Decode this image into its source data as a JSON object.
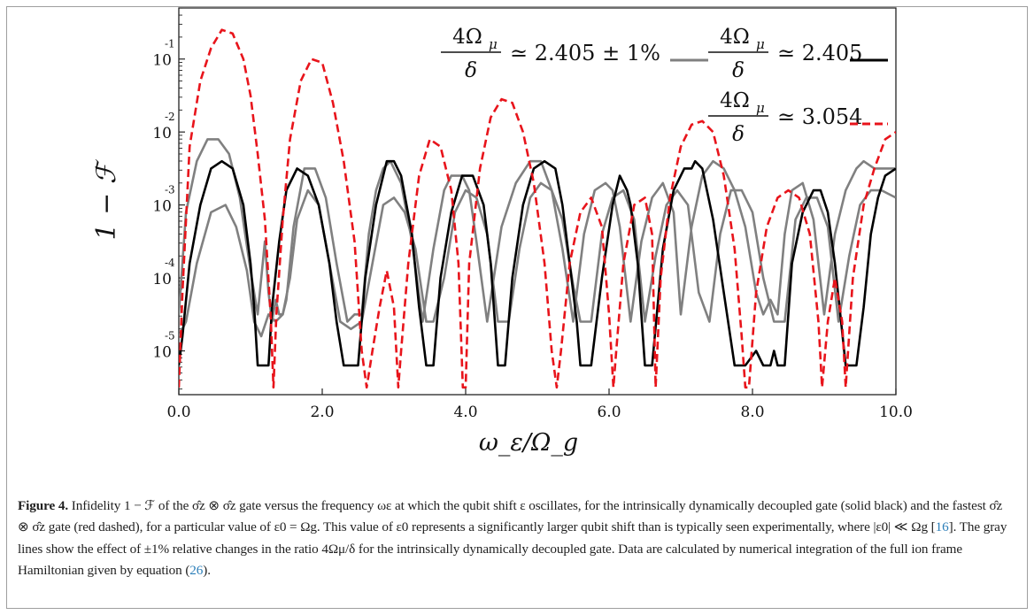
{
  "chart_data": {
    "type": "line",
    "xlabel": "ω_ε/Ω_g",
    "ylabel": "1 − ℱ",
    "xlim": [
      0,
      10
    ],
    "ylim": [
      -5.6,
      -0.3
    ],
    "y_scale": "log",
    "x_ticks": [
      "0.0",
      "2.0",
      "4.0",
      "6.0",
      "8.0",
      "10.0"
    ],
    "y_ticks": [
      {
        "base": "10",
        "exp": "-1",
        "log": -1
      },
      {
        "base": "10",
        "exp": "-2",
        "log": -2
      },
      {
        "base": "10",
        "exp": "-3",
        "log": -3
      },
      {
        "base": "10",
        "exp": "-4",
        "log": -4
      },
      {
        "base": "10",
        "exp": "-5",
        "log": -5
      }
    ],
    "legend_placement": "top-right",
    "series": [
      {
        "key": "gray_upper",
        "color": "#808080",
        "style": "solid",
        "x": [
          0.0,
          0.1,
          0.25,
          0.4,
          0.55,
          0.7,
          0.85,
          1.0,
          1.1,
          1.2,
          1.25,
          1.3,
          1.35,
          1.4,
          1.45,
          1.5,
          1.6,
          1.75,
          1.9,
          2.05,
          2.2,
          2.35,
          2.45,
          2.55,
          2.65,
          2.75,
          2.85,
          2.95,
          3.1,
          3.25,
          3.4,
          3.55,
          3.7,
          3.8,
          3.9,
          3.95,
          4.05,
          4.15,
          4.3,
          4.5,
          4.7,
          4.9,
          5.05,
          5.2,
          5.35,
          5.5,
          5.65,
          5.8,
          5.95,
          6.05,
          6.15,
          6.3,
          6.45,
          6.6,
          6.75,
          6.9,
          7.0,
          7.15,
          7.3,
          7.45,
          7.6,
          7.75,
          7.9,
          8.05,
          8.15,
          8.25,
          8.35,
          8.45,
          8.55,
          8.7,
          8.85,
          9.0,
          9.15,
          9.3,
          9.45,
          9.55,
          9.7,
          9.85,
          10.0
        ],
        "y": [
          -4.5,
          -3.1,
          -2.4,
          -2.1,
          -2.1,
          -2.3,
          -2.9,
          -3.9,
          -4.5,
          -3.5,
          -4.2,
          -4.6,
          -4.3,
          -4.5,
          -4.5,
          -4.3,
          -3.3,
          -2.5,
          -2.5,
          -2.9,
          -3.8,
          -4.6,
          -4.5,
          -4.5,
          -3.4,
          -2.8,
          -2.5,
          -2.4,
          -2.7,
          -3.5,
          -4.6,
          -3.6,
          -2.8,
          -2.6,
          -2.6,
          -2.6,
          -2.8,
          -3.5,
          -4.6,
          -3.3,
          -2.7,
          -2.4,
          -2.4,
          -2.8,
          -3.6,
          -4.6,
          -3.4,
          -2.8,
          -2.7,
          -2.8,
          -3.3,
          -4.6,
          -3.5,
          -2.9,
          -2.7,
          -3.1,
          -4.5,
          -3.3,
          -2.6,
          -2.4,
          -2.5,
          -2.8,
          -3.3,
          -4.2,
          -4.5,
          -4.3,
          -4.5,
          -3.4,
          -2.8,
          -2.7,
          -3.2,
          -4.5,
          -3.4,
          -2.8,
          -2.5,
          -2.4,
          -2.5,
          -2.5,
          -2.5
        ]
      },
      {
        "key": "gray_lower",
        "color": "#808080",
        "style": "solid",
        "x": [
          0.0,
          0.1,
          0.25,
          0.45,
          0.65,
          0.8,
          0.95,
          1.05,
          1.15,
          1.25,
          1.35,
          1.45,
          1.55,
          1.65,
          1.8,
          1.95,
          2.1,
          2.25,
          2.4,
          2.55,
          2.7,
          2.85,
          3.0,
          3.15,
          3.3,
          3.45,
          3.55,
          3.7,
          3.85,
          4.0,
          4.15,
          4.3,
          4.45,
          4.6,
          4.75,
          4.9,
          5.05,
          5.2,
          5.35,
          5.5,
          5.6,
          5.75,
          5.9,
          6.05,
          6.2,
          6.35,
          6.5,
          6.65,
          6.8,
          6.95,
          7.1,
          7.25,
          7.4,
          7.55,
          7.7,
          7.85,
          8.0,
          8.15,
          8.3,
          8.45,
          8.6,
          8.75,
          8.9,
          9.05,
          9.2,
          9.35,
          9.5,
          9.65,
          9.8,
          10.0
        ],
        "y": [
          -4.8,
          -4.6,
          -3.8,
          -3.1,
          -3.0,
          -3.3,
          -3.9,
          -4.6,
          -4.8,
          -4.5,
          -4.6,
          -4.5,
          -4.0,
          -3.2,
          -2.8,
          -3.0,
          -3.8,
          -4.6,
          -4.7,
          -4.6,
          -3.8,
          -3.0,
          -2.9,
          -3.1,
          -3.6,
          -4.6,
          -4.6,
          -4.0,
          -3.1,
          -2.8,
          -2.9,
          -3.4,
          -4.6,
          -4.6,
          -3.6,
          -2.9,
          -2.7,
          -2.8,
          -3.2,
          -4.1,
          -4.6,
          -4.6,
          -3.4,
          -2.9,
          -2.8,
          -3.2,
          -4.6,
          -3.7,
          -3.0,
          -2.8,
          -3.0,
          -4.2,
          -4.6,
          -3.4,
          -2.8,
          -2.8,
          -3.1,
          -4.0,
          -4.6,
          -4.6,
          -3.2,
          -2.9,
          -2.9,
          -3.3,
          -4.6,
          -3.7,
          -3.0,
          -2.8,
          -2.8,
          -2.9
        ]
      },
      {
        "key": "black",
        "color": "#000000",
        "style": "solid",
        "x": [
          0.0,
          0.05,
          0.15,
          0.3,
          0.45,
          0.6,
          0.75,
          0.9,
          1.0,
          1.05,
          1.1,
          1.15,
          1.25,
          1.3,
          1.4,
          1.5,
          1.65,
          1.8,
          1.95,
          2.1,
          2.2,
          2.3,
          2.4,
          2.5,
          2.6,
          2.75,
          2.9,
          3.0,
          3.1,
          3.25,
          3.35,
          3.45,
          3.55,
          3.65,
          3.8,
          3.95,
          4.1,
          4.25,
          4.35,
          4.45,
          4.55,
          4.65,
          4.8,
          4.95,
          5.1,
          5.25,
          5.35,
          5.45,
          5.55,
          5.6,
          5.75,
          5.9,
          6.05,
          6.15,
          6.25,
          6.3,
          6.4,
          6.5,
          6.6,
          6.75,
          6.9,
          7.05,
          7.15,
          7.2,
          7.3,
          7.45,
          7.6,
          7.75,
          7.9,
          8.05,
          8.15,
          8.25,
          8.3,
          8.35,
          8.4,
          8.45,
          8.55,
          8.7,
          8.85,
          8.95,
          9.05,
          9.15,
          9.3,
          9.45,
          9.55,
          9.65,
          9.75,
          9.85,
          10.0
        ],
        "y": [
          -5.2,
          -4.8,
          -3.8,
          -3.0,
          -2.5,
          -2.4,
          -2.5,
          -3.0,
          -3.8,
          -4.4,
          -5.2,
          -5.2,
          -5.2,
          -4.4,
          -3.5,
          -2.8,
          -2.5,
          -2.6,
          -3.0,
          -3.8,
          -4.6,
          -5.2,
          -5.2,
          -5.2,
          -4.0,
          -3.0,
          -2.4,
          -2.4,
          -2.6,
          -3.4,
          -4.4,
          -5.2,
          -5.2,
          -4.0,
          -3.1,
          -2.6,
          -2.6,
          -3.0,
          -3.8,
          -5.2,
          -5.2,
          -4.0,
          -3.0,
          -2.5,
          -2.4,
          -2.5,
          -3.0,
          -3.8,
          -4.6,
          -5.2,
          -5.2,
          -4.0,
          -3.0,
          -2.6,
          -2.8,
          -3.0,
          -3.8,
          -5.2,
          -5.2,
          -3.6,
          -2.8,
          -2.5,
          -2.5,
          -2.4,
          -2.5,
          -3.2,
          -4.2,
          -5.2,
          -5.2,
          -5.0,
          -5.2,
          -5.2,
          -5.0,
          -5.2,
          -5.2,
          -5.2,
          -3.8,
          -3.1,
          -2.8,
          -2.8,
          -3.1,
          -3.8,
          -5.2,
          -5.2,
          -4.4,
          -3.4,
          -2.9,
          -2.6,
          -2.5
        ]
      },
      {
        "key": "red",
        "color": "#e8141b",
        "style": "dashed",
        "x": [
          0.0,
          0.05,
          0.15,
          0.3,
          0.45,
          0.6,
          0.75,
          0.9,
          1.0,
          1.1,
          1.2,
          1.28,
          1.32,
          1.36,
          1.45,
          1.55,
          1.7,
          1.85,
          2.0,
          2.15,
          2.3,
          2.45,
          2.55,
          2.62,
          2.7,
          2.8,
          2.9,
          3.0,
          3.06,
          3.1,
          3.2,
          3.35,
          3.5,
          3.65,
          3.8,
          3.9,
          3.96,
          4.0,
          4.05,
          4.2,
          4.35,
          4.5,
          4.65,
          4.8,
          4.95,
          5.1,
          5.2,
          5.27,
          5.33,
          5.45,
          5.6,
          5.75,
          5.9,
          6.0,
          6.06,
          6.1,
          6.2,
          6.35,
          6.5,
          6.6,
          6.65,
          6.72,
          6.85,
          7.0,
          7.15,
          7.3,
          7.45,
          7.6,
          7.75,
          7.85,
          7.9,
          7.95,
          8.05,
          8.2,
          8.35,
          8.5,
          8.65,
          8.8,
          8.92,
          8.97,
          9.05,
          9.15,
          9.25,
          9.3,
          9.4,
          9.55,
          9.7,
          9.85,
          10.0
        ],
        "y": [
          -5.5,
          -4.2,
          -2.2,
          -1.3,
          -0.85,
          -0.6,
          -0.65,
          -1.0,
          -1.5,
          -2.3,
          -3.2,
          -4.5,
          -5.5,
          -4.5,
          -3.2,
          -2.1,
          -1.3,
          -1.0,
          -1.05,
          -1.6,
          -2.4,
          -3.5,
          -5.0,
          -5.5,
          -5.0,
          -4.4,
          -3.9,
          -4.4,
          -5.5,
          -5.0,
          -3.8,
          -2.6,
          -2.1,
          -2.2,
          -2.8,
          -3.8,
          -5.5,
          -5.5,
          -3.8,
          -2.5,
          -1.8,
          -1.55,
          -1.6,
          -2.0,
          -2.7,
          -3.8,
          -5.0,
          -5.5,
          -5.0,
          -3.8,
          -3.1,
          -2.9,
          -3.3,
          -4.5,
          -5.5,
          -5.0,
          -3.8,
          -3.0,
          -2.9,
          -3.4,
          -5.5,
          -4.0,
          -2.9,
          -2.2,
          -1.9,
          -1.85,
          -2.0,
          -2.6,
          -3.6,
          -4.8,
          -5.5,
          -5.5,
          -4.2,
          -3.3,
          -2.9,
          -2.8,
          -2.9,
          -3.4,
          -4.6,
          -5.5,
          -4.6,
          -4.0,
          -4.6,
          -5.5,
          -4.0,
          -3.0,
          -2.5,
          -2.1,
          -2.0
        ]
      }
    ],
    "legend": {
      "gray": {
        "num": "4Ω",
        "sub": "μ",
        "den": "δ",
        "rhs": "≃ 2.405 ± 1%"
      },
      "black": {
        "num": "4Ω",
        "sub": "μ",
        "den": "δ",
        "rhs": "≃ 2.405"
      },
      "red": {
        "num": "4Ω",
        "sub": "μ",
        "den": "δ",
        "rhs": "≃ 3.054"
      }
    }
  },
  "caption": {
    "label": "Figure 4.",
    "text": " Infidelity 1 − ℱ of the σ̂z ⊗ σ̂z gate versus the frequency ωε at which the qubit shift ε oscillates, for the intrinsically dynamically decoupled gate (solid black) and the fastest σ̂z ⊗ σ̂z gate (red dashed), for a particular value of ε0 = Ωg. This value of ε0 represents a significantly larger qubit shift than is typically seen experimentally, where |ε0| ≪ Ωg [",
    "ref1": "16",
    "text2": "]. The gray lines show the effect of ±1% relative changes in the ratio 4Ωμ/δ for the intrinsically dynamically decoupled gate. Data are calculated by numerical integration of the full ion frame Hamiltonian given by equation (",
    "ref2": "26",
    "text3": ")."
  }
}
